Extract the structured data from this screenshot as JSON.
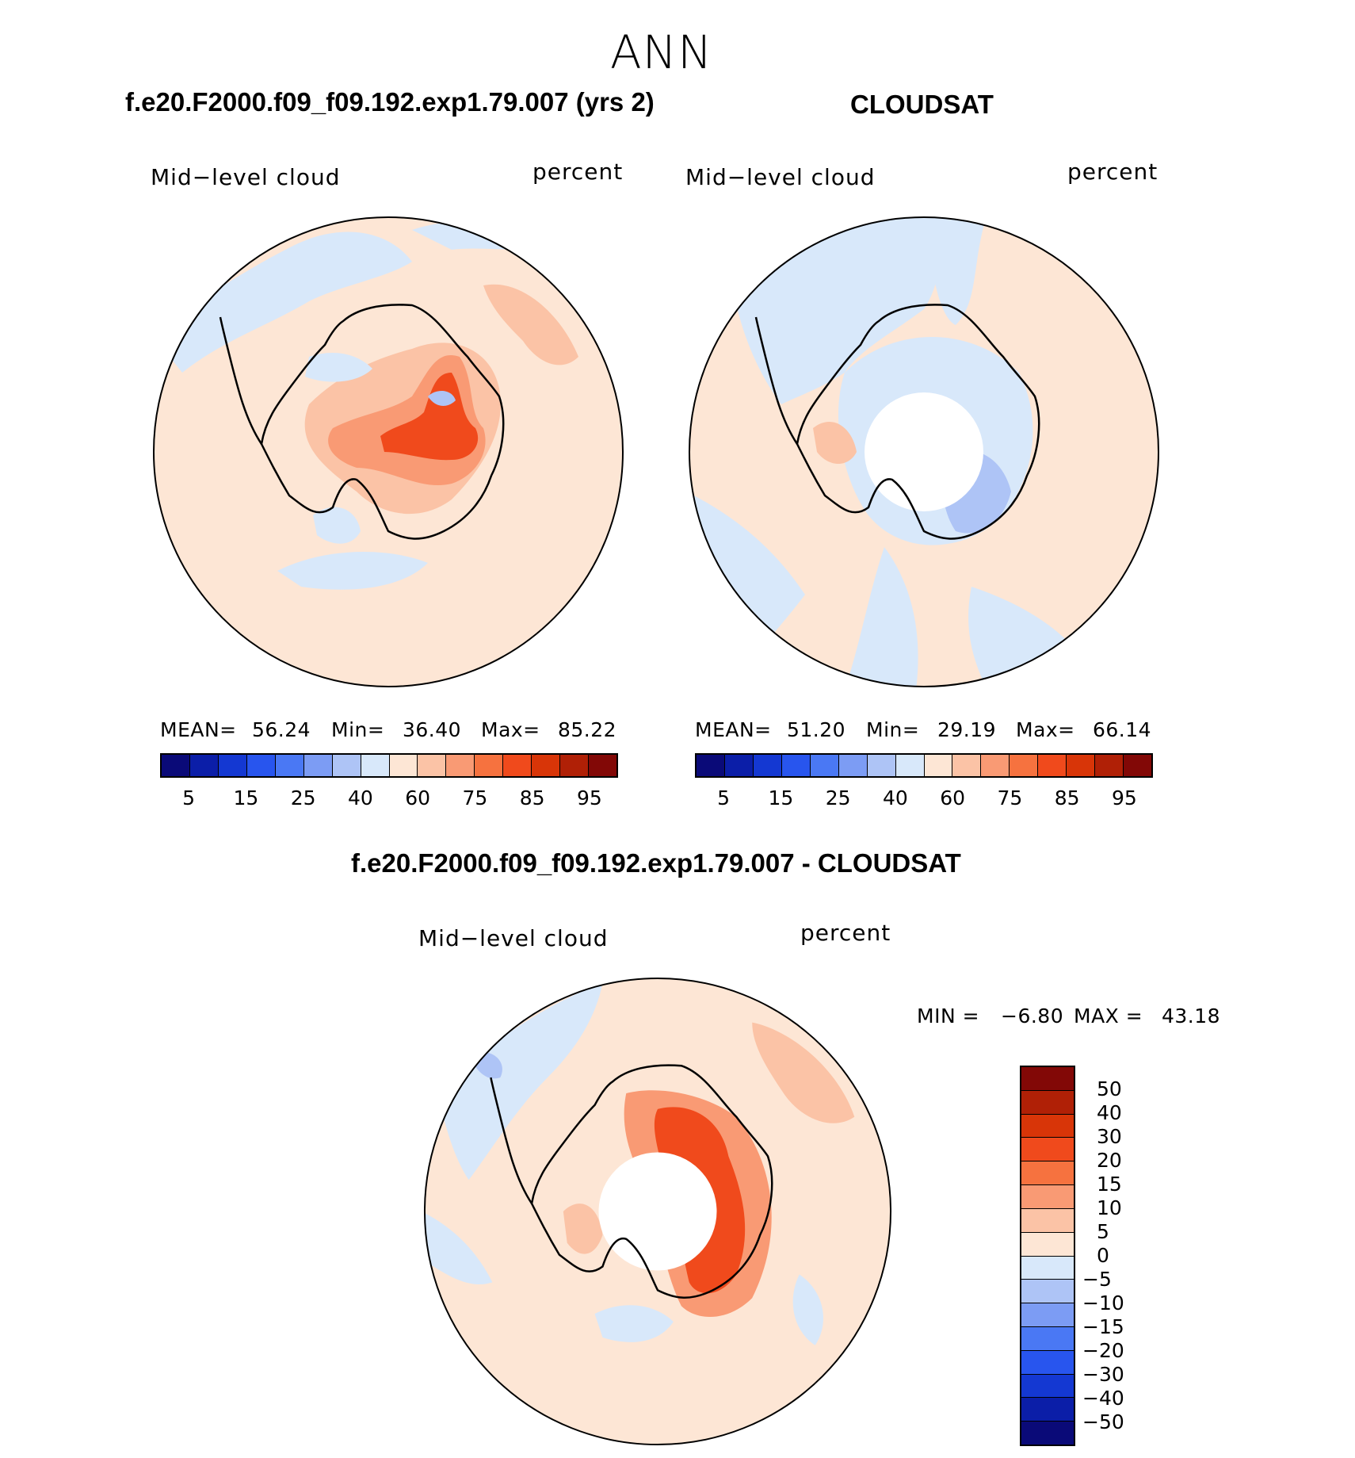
{
  "page": {
    "title": "ANN"
  },
  "panel_left": {
    "title": "f.e20.F2000.f09_f09.192.exp1.79.007 (yrs 2)",
    "variable": "Mid−level cloud",
    "units": "percent",
    "mean_label": "MEAN=",
    "mean": "56.24",
    "min_label": "Min=",
    "min": "36.40",
    "max_label": "Max=",
    "max": "85.22"
  },
  "panel_right": {
    "title": "CLOUDSAT",
    "variable": "Mid−level cloud",
    "units": "percent",
    "mean_label": "MEAN=",
    "mean": "51.20",
    "min_label": "Min=",
    "min": "29.19",
    "max_label": "Max=",
    "max": "66.14"
  },
  "panel_diff": {
    "title": "f.e20.F2000.f09_f09.192.exp1.79.007 - CLOUDSAT",
    "variable": "Mid−level cloud",
    "units": "percent",
    "min_label": "MIN  =",
    "min": "−6.80",
    "max_label": "MAX  =",
    "max": "43.18"
  },
  "colorbar_abs": {
    "colors": [
      "#0a0a78",
      "#0b1ea8",
      "#1438d2",
      "#2855ee",
      "#4a78f4",
      "#7c9cf4",
      "#aec4f6",
      "#d8e8fa",
      "#fde6d5",
      "#fbc3a6",
      "#f99a74",
      "#f6723f",
      "#f04a1c",
      "#d83508",
      "#b02006",
      "#820806"
    ],
    "tick_labels": [
      "5",
      "15",
      "25",
      "40",
      "60",
      "75",
      "85",
      "95"
    ]
  },
  "colorbar_diff": {
    "colors_top_to_bottom": [
      "#820806",
      "#b02006",
      "#d83508",
      "#f04a1c",
      "#f6723f",
      "#f99a74",
      "#fbc3a6",
      "#fde6d5",
      "#d8e8fa",
      "#aec4f6",
      "#7c9cf4",
      "#4a78f4",
      "#2855ee",
      "#1438d2",
      "#0b1ea8",
      "#0a0a78"
    ],
    "tick_labels": [
      "50",
      "40",
      "30",
      "20",
      "15",
      "10",
      "5",
      "0",
      "−5",
      "−10",
      "−15",
      "−20",
      "−30",
      "−40",
      "−50"
    ]
  },
  "colors": {
    "land_outline": "#000000",
    "pos_light": "#fde6d5",
    "pos_mid": "#fbc3a6",
    "pos_strong": "#f99a74",
    "pos_hot": "#f04a1c",
    "neg_light": "#d8e8fa",
    "neg_mid": "#aec4f6"
  }
}
